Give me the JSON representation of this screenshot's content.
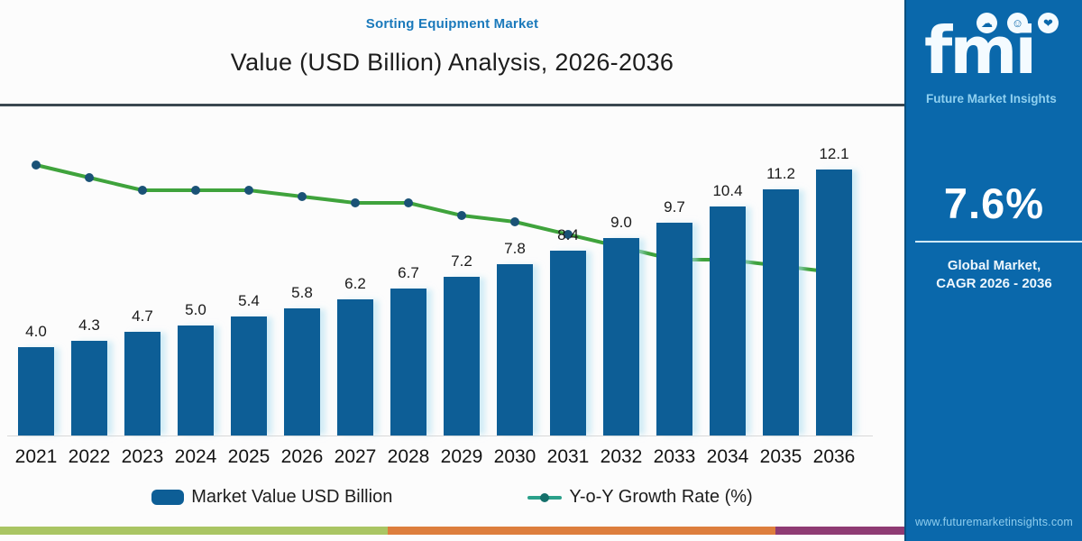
{
  "header": {
    "eyebrow": "Sorting Equipment Market",
    "title": "Value (USD Billion) Analysis, 2026-2036"
  },
  "chart_data": {
    "type": "bar",
    "title": "Sorting Equipment Market",
    "subtitle": "Value (USD Billion) Analysis, 2026-2036",
    "categories": [
      "2021",
      "2022",
      "2023",
      "2024",
      "2025",
      "2026",
      "2027",
      "2028",
      "2029",
      "2030",
      "2031",
      "2032",
      "2033",
      "2034",
      "2035",
      "2036"
    ],
    "series": [
      {
        "name": "Market Value USD Billion",
        "type": "bar",
        "unit": "USD Billion",
        "color": "#0d5e96",
        "values": [
          4.0,
          4.3,
          4.7,
          5.0,
          5.4,
          5.8,
          6.2,
          6.7,
          7.2,
          7.8,
          8.4,
          9.0,
          9.7,
          10.4,
          11.2,
          12.1
        ]
      },
      {
        "name": "Y-o-Y Growth Rate (%)",
        "type": "line",
        "unit": "%",
        "color": "#3fa33c",
        "marker_color": "#1a5276",
        "estimated": true,
        "values": [
          8.6,
          8.4,
          8.2,
          8.2,
          8.2,
          8.1,
          8.0,
          8.0,
          7.8,
          7.7,
          7.5,
          7.3,
          7.1,
          7.1,
          7.0,
          6.9
        ]
      }
    ],
    "ylim": [
      0,
      13
    ],
    "grid": false,
    "legend_position": "bottom",
    "value_labels_shown": true
  },
  "legend": {
    "bar_label": "Market Value USD Billion",
    "line_label": "Y-o-Y Growth Rate (%)"
  },
  "sidebar": {
    "logo_text": "fmi",
    "logo_subtext": "Future Market Insights",
    "cagr_value": "7.6%",
    "cagr_caption_line1": "Global Market,",
    "cagr_caption_line2": "CAGR 2026 - 2036",
    "website": "www.futuremarketinsights.com"
  },
  "colors": {
    "bar": "#0d5e96",
    "growth_line": "#3fa33c",
    "line_marker": "#1a5276",
    "sidebar_background": "#0a68ab",
    "eyebrow_text": "#1a79bb",
    "title_text": "#1d1d1d",
    "title_divider": "#3a4750",
    "footer_strip": [
      "#a9c563",
      "#dd7e3d",
      "#8e3b73"
    ]
  }
}
